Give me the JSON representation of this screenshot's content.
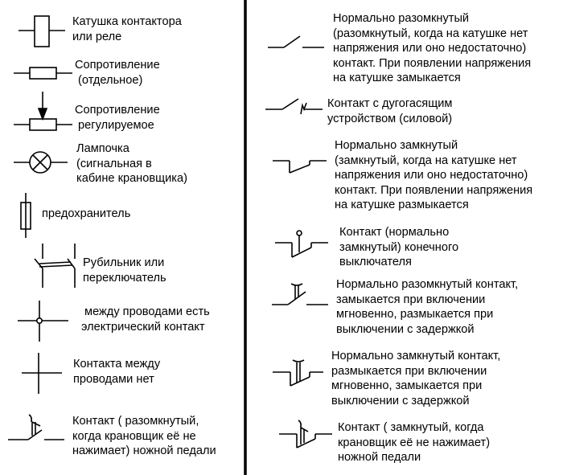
{
  "left": [
    {
      "lines": [
        "Катушка контактора",
        "или реле"
      ]
    },
    {
      "lines": [
        "Сопротивление",
        " (отдельное)"
      ]
    },
    {
      "lines": [
        "Сопротивление",
        " регулируемое"
      ]
    },
    {
      "lines": [
        "Лампочка",
        "(сигнальная в",
        "кабине крановщика)"
      ]
    },
    {
      "lines": [
        "предохранитель"
      ]
    },
    {
      "lines": [
        "Рубильник или",
        "переключатель"
      ]
    },
    {
      "lines": [
        " между проводами есть",
        "электрический контакт"
      ]
    },
    {
      "lines": [
        "Контакта между",
        "проводами нет"
      ]
    },
    {
      "lines": [
        "Контакт ( разомкнутый,",
        "когда крановщик её не",
        "нажимает) ножной педали"
      ]
    }
  ],
  "right": [
    {
      "lines": [
        "Нормально разомкнутый",
        "(разомкнутый, когда на катушке нет",
        "напряжения или оно недостаточно)",
        "контакт. При появлении напряжения",
        "на катушке замыкается"
      ]
    },
    {
      "lines": [
        "Контакт с дугогасящим",
        "устройством (силовой)"
      ]
    },
    {
      "lines": [
        "Нормально замкнутый",
        "(замкнутый, когда на катушке нет",
        "напряжения или оно недостаточно)",
        "контакт. При появлении напряжения",
        "на катушке размыкается"
      ]
    },
    {
      "lines": [
        "Контакт (нормально",
        "замкнутый) конечного",
        "выключателя"
      ]
    },
    {
      "lines": [
        "Нормально разомкнутый контакт,",
        "замыкается при включении",
        "мгновенно, размыкается при",
        "выключении с задержкой"
      ]
    },
    {
      "lines": [
        "Нормально замкнутый контакт,",
        "размыкается при включении",
        "мгновенно, замыкается при",
        "выключении с задержкой"
      ]
    },
    {
      "lines": [
        "Контакт ( замкнутый, когда",
        "крановщик её не нажимает)",
        "ножной педали"
      ]
    }
  ]
}
